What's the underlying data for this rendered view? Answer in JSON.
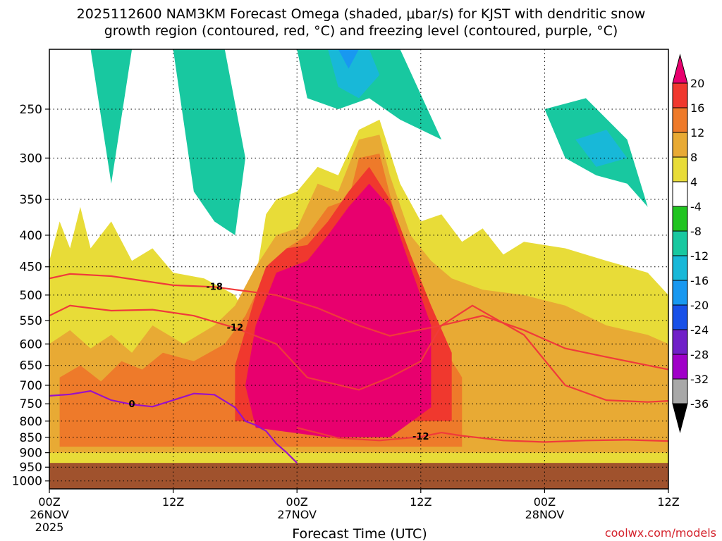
{
  "chart_data": {
    "type": "heatmap",
    "title_line1": "2025112600 NAM3KM Forecast Omega (shaded, μbar/s) for KJST with dendritic snow",
    "title_line2": "growth region (contoured, red, °C) and freezing level (contoured, purple, °C)",
    "xlabel": "Forecast Time (UTC)",
    "x_ticks": [
      {
        "hour": 0,
        "label": "00Z",
        "sub1": "26NOV",
        "sub2": "2025"
      },
      {
        "hour": 12,
        "label": "12Z",
        "sub1": "",
        "sub2": ""
      },
      {
        "hour": 24,
        "label": "00Z",
        "sub1": "27NOV",
        "sub2": ""
      },
      {
        "hour": 36,
        "label": "12Z",
        "sub1": "",
        "sub2": ""
      },
      {
        "hour": 48,
        "label": "00Z",
        "sub1": "28NOV",
        "sub2": ""
      },
      {
        "hour": 60,
        "label": "12Z",
        "sub1": "",
        "sub2": ""
      }
    ],
    "xlim_hours": [
      0,
      60
    ],
    "y_ticks": [
      250,
      300,
      350,
      400,
      450,
      500,
      550,
      600,
      650,
      700,
      750,
      800,
      850,
      900,
      950,
      1000
    ],
    "ylim_hPa": [
      200,
      1030
    ],
    "y_scale": "log",
    "surface_pressure_hPa": 935,
    "colorbar": {
      "labels": [
        "20",
        "16",
        "12",
        "8",
        "4",
        "-4",
        "-8",
        "-12",
        "-16",
        "-20",
        "-24",
        "-28",
        "-32",
        "-36"
      ],
      "colors": [
        "#e8006e",
        "#f0382e",
        "#ee7a2a",
        "#e8aa34",
        "#e8dc38",
        "#ffffff",
        "#20c420",
        "#18c8a0",
        "#18b8d8",
        "#1898f0",
        "#1850e8",
        "#7020c8",
        "#a000c8",
        "#a8a8a8",
        "#000000"
      ]
    },
    "dgz_contours": [
      {
        "label": "-18",
        "points": [
          [
            0,
            470
          ],
          [
            2,
            462
          ],
          [
            6,
            466
          ],
          [
            12,
            482
          ],
          [
            16,
            485
          ],
          [
            22,
            500
          ],
          [
            26,
            525
          ],
          [
            30,
            560
          ],
          [
            33,
            582
          ],
          [
            38,
            560
          ],
          [
            42,
            540
          ],
          [
            46,
            570
          ],
          [
            50,
            610
          ],
          [
            54,
            630
          ],
          [
            60,
            660
          ]
        ]
      },
      {
        "label": "-12",
        "points": [
          [
            0,
            540
          ],
          [
            2,
            520
          ],
          [
            6,
            530
          ],
          [
            10,
            528
          ],
          [
            14,
            540
          ],
          [
            18,
            565
          ],
          [
            22,
            600
          ],
          [
            25,
            680
          ],
          [
            30,
            712
          ],
          [
            33,
            680
          ],
          [
            36,
            640
          ],
          [
            38,
            560
          ],
          [
            41,
            520
          ],
          [
            46,
            580
          ],
          [
            50,
            700
          ],
          [
            54,
            740
          ],
          [
            58,
            745
          ],
          [
            60,
            742
          ]
        ]
      },
      {
        "label": "-12",
        "points": [
          [
            24,
            820
          ],
          [
            28,
            852
          ],
          [
            32,
            860
          ],
          [
            36,
            848
          ],
          [
            38,
            835
          ],
          [
            40,
            845
          ],
          [
            44,
            860
          ],
          [
            48,
            865
          ],
          [
            52,
            860
          ],
          [
            56,
            858
          ],
          [
            60,
            862
          ]
        ]
      }
    ],
    "freezing_level": {
      "label": "0",
      "points": [
        [
          0,
          728
        ],
        [
          2,
          724
        ],
        [
          4,
          715
        ],
        [
          6,
          740
        ],
        [
          8,
          752
        ],
        [
          10,
          758
        ],
        [
          12,
          740
        ],
        [
          14,
          722
        ],
        [
          16,
          725
        ],
        [
          18,
          760
        ],
        [
          19,
          800
        ],
        [
          20,
          812
        ],
        [
          21,
          830
        ],
        [
          22,
          870
        ],
        [
          23,
          900
        ],
        [
          24,
          935
        ]
      ]
    },
    "omega_regions": [
      {
        "value": 4,
        "points": [
          [
            0,
            940
          ],
          [
            0,
            440
          ],
          [
            1,
            380
          ],
          [
            2,
            420
          ],
          [
            3,
            360
          ],
          [
            4,
            420
          ],
          [
            6,
            380
          ],
          [
            8,
            440
          ],
          [
            10,
            420
          ],
          [
            12,
            460
          ],
          [
            15,
            470
          ],
          [
            18,
            500
          ],
          [
            19,
            540
          ],
          [
            20,
            470
          ],
          [
            21,
            370
          ],
          [
            22,
            350
          ],
          [
            24,
            340
          ],
          [
            26,
            310
          ],
          [
            28,
            320
          ],
          [
            30,
            270
          ],
          [
            32,
            260
          ],
          [
            34,
            330
          ],
          [
            36,
            380
          ],
          [
            38,
            370
          ],
          [
            40,
            410
          ],
          [
            42,
            390
          ],
          [
            44,
            430
          ],
          [
            46,
            410
          ],
          [
            50,
            420
          ],
          [
            54,
            440
          ],
          [
            58,
            460
          ],
          [
            60,
            500
          ],
          [
            60,
            940
          ]
        ]
      },
      {
        "value": 8,
        "points": [
          [
            0,
            900
          ],
          [
            0,
            600
          ],
          [
            2,
            570
          ],
          [
            4,
            610
          ],
          [
            6,
            580
          ],
          [
            8,
            620
          ],
          [
            10,
            560
          ],
          [
            13,
            600
          ],
          [
            16,
            560
          ],
          [
            18,
            520
          ],
          [
            20,
            450
          ],
          [
            22,
            400
          ],
          [
            24,
            390
          ],
          [
            26,
            330
          ],
          [
            28,
            340
          ],
          [
            30,
            280
          ],
          [
            32,
            275
          ],
          [
            33,
            320
          ],
          [
            35,
            400
          ],
          [
            37,
            440
          ],
          [
            39,
            470
          ],
          [
            42,
            490
          ],
          [
            46,
            500
          ],
          [
            50,
            520
          ],
          [
            54,
            560
          ],
          [
            58,
            580
          ],
          [
            60,
            600
          ],
          [
            60,
            900
          ]
        ]
      },
      {
        "value": 12,
        "points": [
          [
            1,
            880
          ],
          [
            1,
            680
          ],
          [
            3,
            650
          ],
          [
            5,
            690
          ],
          [
            7,
            640
          ],
          [
            9,
            660
          ],
          [
            11,
            620
          ],
          [
            14,
            640
          ],
          [
            17,
            600
          ],
          [
            19,
            540
          ],
          [
            21,
            460
          ],
          [
            23,
            420
          ],
          [
            25,
            400
          ],
          [
            27,
            360
          ],
          [
            29,
            350
          ],
          [
            30,
            300
          ],
          [
            32,
            295
          ],
          [
            34,
            400
          ],
          [
            35,
            460
          ],
          [
            36,
            520
          ],
          [
            38,
            600
          ],
          [
            40,
            680
          ],
          [
            40,
            880
          ]
        ]
      },
      {
        "value": 16,
        "points": [
          [
            18,
            800
          ],
          [
            18,
            650
          ],
          [
            20,
            500
          ],
          [
            21,
            450
          ],
          [
            23,
            420
          ],
          [
            25,
            415
          ],
          [
            27,
            380
          ],
          [
            29,
            340
          ],
          [
            31,
            310
          ],
          [
            33,
            350
          ],
          [
            35,
            430
          ],
          [
            37,
            520
          ],
          [
            39,
            620
          ],
          [
            39,
            800
          ]
        ]
      },
      {
        "value": 20,
        "points": [
          [
            20,
            820
          ],
          [
            19,
            700
          ],
          [
            20,
            560
          ],
          [
            22,
            460
          ],
          [
            25,
            440
          ],
          [
            27,
            400
          ],
          [
            29,
            360
          ],
          [
            31,
            330
          ],
          [
            33,
            360
          ],
          [
            35,
            450
          ],
          [
            37,
            560
          ],
          [
            37,
            760
          ],
          [
            33,
            850
          ],
          [
            27,
            850
          ]
        ]
      },
      {
        "value": -8,
        "points": [
          [
            1,
            200
          ],
          [
            4,
            200
          ],
          [
            6,
            330
          ],
          [
            8,
            200
          ],
          [
            12,
            200
          ],
          [
            14,
            340
          ],
          [
            16,
            380
          ],
          [
            18,
            400
          ],
          [
            19,
            300
          ],
          [
            17,
            200
          ]
        ]
      },
      {
        "value": -8,
        "points": [
          [
            24,
            200
          ],
          [
            34,
            200
          ],
          [
            38,
            280
          ],
          [
            34,
            260
          ],
          [
            31,
            240
          ],
          [
            28,
            250
          ],
          [
            25,
            240
          ]
        ]
      },
      {
        "value": -8,
        "points": [
          [
            48,
            250
          ],
          [
            52,
            240
          ],
          [
            56,
            280
          ],
          [
            58,
            360
          ],
          [
            56,
            330
          ],
          [
            53,
            320
          ],
          [
            50,
            300
          ]
        ]
      },
      {
        "value": -12,
        "points": [
          [
            27,
            200
          ],
          [
            31,
            200
          ],
          [
            32,
            220
          ],
          [
            30,
            240
          ],
          [
            28,
            230
          ]
        ]
      },
      {
        "value": -12,
        "points": [
          [
            51,
            280
          ],
          [
            54,
            270
          ],
          [
            56,
            300
          ],
          [
            53,
            310
          ]
        ]
      },
      {
        "value": -16,
        "points": [
          [
            28,
            200
          ],
          [
            30,
            200
          ],
          [
            29,
            215
          ]
        ]
      }
    ]
  },
  "credit": "coolwx.com/models"
}
